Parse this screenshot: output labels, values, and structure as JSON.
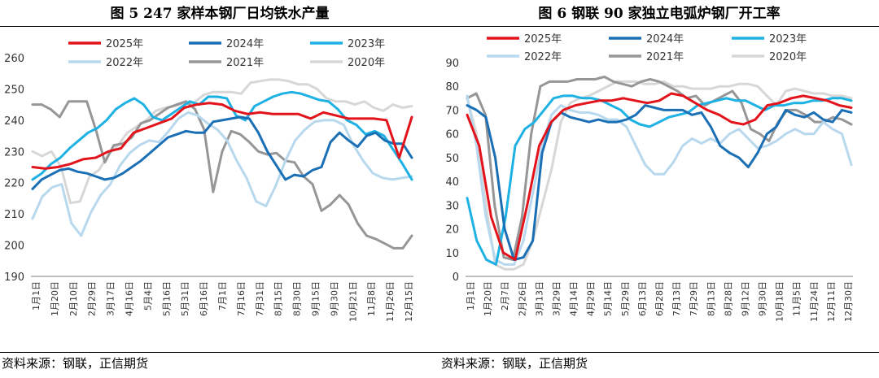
{
  "left": {
    "title": "图 5   247 家样本钢厂日均铁水产量",
    "source": "资料来源：钢联，正信期货"
  },
  "right": {
    "title": "图 6   钢联 90 家独立电弧炉钢厂开工率",
    "source": "资料来源：钢联，正信期货"
  },
  "colors": {
    "2025年": "#e3131b",
    "2024年": "#1a6fb5",
    "2023年": "#1eb1e4",
    "2022年": "#b8d8ee",
    "2021年": "#969696",
    "2020年": "#d7d7d7"
  },
  "chart_data": [
    {
      "type": "line",
      "title": "图 5   247 家样本钢厂日均铁水产量",
      "xlabel": "",
      "ylabel": "",
      "ylim": [
        190,
        260
      ],
      "yticks": [
        190,
        200,
        210,
        220,
        230,
        240,
        250,
        260
      ],
      "legend_position": "top",
      "x_tick_labels": [
        "1月1日",
        "1月20日",
        "2月10日",
        "2月29日",
        "3月17日",
        "4月16日",
        "5月4日",
        "5月16日",
        "5月31日",
        "6月16日",
        "7月1日",
        "7月16日",
        "7月31日",
        "8月15日",
        "8月30日",
        "9月15日",
        "9月30日",
        "10月21日",
        "11月8日",
        "11月26日",
        "12月15日"
      ],
      "series": [
        {
          "name": "2025年",
          "values": [
            225,
            224.5,
            225,
            226,
            227.5,
            228,
            230,
            231,
            236,
            237.5,
            239,
            240.5,
            244,
            245,
            245.5,
            245,
            243,
            242,
            242.5,
            242,
            242,
            242,
            240.5,
            242.5,
            241.5,
            240.5,
            240.5,
            240.5,
            240,
            228,
            241
          ]
        },
        {
          "name": "2024年",
          "values": [
            218,
            221,
            222.5,
            224,
            224.5,
            223.5,
            223,
            222,
            221,
            221.5,
            223,
            225,
            227,
            229.5,
            232,
            234.5,
            235.5,
            236.5,
            236,
            236,
            239.5,
            240,
            240.5,
            241,
            240.5,
            236,
            230,
            225.5,
            221,
            222.5,
            222,
            224,
            225,
            233,
            236,
            233.5,
            231.5,
            235,
            236,
            233.5,
            232.5,
            232.5,
            228
          ]
        },
        {
          "name": "2023年",
          "values": [
            221,
            223,
            226,
            228,
            231,
            233.5,
            236,
            237.5,
            240,
            243.5,
            245.5,
            247,
            245,
            241,
            240,
            242,
            244,
            246,
            245,
            247.5,
            247.5,
            247,
            241.5,
            240,
            244.5,
            246,
            247.5,
            248.5,
            249,
            248.5,
            247.5,
            246.5,
            246,
            243.5,
            240,
            238.5,
            235.5,
            236.5,
            235,
            230.5,
            226,
            221
          ]
        },
        {
          "name": "2022年",
          "values": [
            208.5,
            215.5,
            218.5,
            219.5,
            207,
            203,
            210.5,
            216,
            219.5,
            225.5,
            229.5,
            232,
            233.5,
            233,
            236.5,
            240.5,
            242.5,
            241.5,
            239,
            237,
            233.5,
            227,
            221.5,
            214,
            212.5,
            219,
            227,
            233.5,
            237,
            239.5,
            240,
            240,
            238.5,
            232,
            227,
            223,
            221.5,
            221,
            221.5,
            222
          ]
        },
        {
          "name": "2021年",
          "values": [
            245,
            245,
            243.5,
            241,
            246,
            246,
            246,
            237,
            226.5,
            232,
            232.5,
            234.5,
            239,
            240,
            242,
            244,
            245,
            246,
            243.5,
            237,
            217,
            230,
            236.5,
            235.5,
            233,
            230,
            229,
            229.5,
            227,
            226.5,
            222,
            219.5,
            211,
            213,
            216,
            213,
            207,
            203,
            202,
            200.5,
            199,
            199,
            203
          ]
        },
        {
          "name": "2020年",
          "values": [
            230,
            228.5,
            230,
            225,
            213.5,
            214,
            222,
            224,
            229,
            232,
            236,
            238,
            240,
            243,
            244,
            244.5,
            245.5,
            245.5,
            248,
            249,
            249,
            249,
            248.5,
            252,
            252.5,
            253,
            253,
            252.5,
            251.5,
            251.5,
            250,
            247,
            246,
            246,
            245,
            246,
            244,
            243,
            245,
            244,
            244.5
          ]
        }
      ]
    },
    {
      "type": "line",
      "title": "图 6   钢联 90 家独立电弧炉钢厂开工率",
      "xlabel": "",
      "ylabel": "",
      "ylim": [
        0,
        90
      ],
      "yticks": [
        0,
        10,
        20,
        30,
        40,
        50,
        60,
        70,
        80,
        90
      ],
      "legend_position": "top",
      "x_tick_labels": [
        "1月1日",
        "1月20日",
        "2月7日",
        "2月26日",
        "3月13日",
        "3月29日",
        "4月14日",
        "4月29日",
        "5月14日",
        "5月29日",
        "6月13日",
        "6月28日",
        "7月13日",
        "7月29日",
        "8月13日",
        "8月28日",
        "9月12日",
        "9月30日",
        "10月18日",
        "11月5日",
        "11月24日",
        "12月11日",
        "12月30日"
      ],
      "series": [
        {
          "name": "2025年",
          "values": [
            68,
            55,
            25,
            10,
            7,
            30,
            55,
            65,
            70,
            72,
            73,
            74,
            74,
            75,
            74,
            73,
            74,
            77,
            76,
            73,
            70,
            68,
            65,
            64,
            66,
            72,
            73,
            75,
            76,
            75,
            74,
            72,
            71
          ]
        },
        {
          "name": "2024年",
          "values": [
            72,
            70,
            67,
            50,
            20,
            7,
            8,
            15,
            52,
            65,
            69,
            67,
            66,
            65,
            66,
            65,
            65,
            66,
            68,
            72,
            71,
            70,
            70,
            70,
            68,
            69,
            63,
            55,
            52,
            50,
            46,
            52,
            60,
            63,
            70,
            68,
            67,
            69,
            66,
            65,
            70,
            69
          ]
        },
        {
          "name": "2023年",
          "values": [
            33,
            15,
            7,
            5,
            25,
            55,
            62,
            65,
            70,
            75,
            76,
            76,
            75,
            75,
            74,
            72,
            70,
            66,
            64,
            63,
            65,
            67,
            68,
            69,
            72,
            73,
            74,
            75,
            74,
            74,
            72,
            70,
            72,
            72,
            73,
            73,
            74,
            74,
            75,
            75,
            74
          ]
        },
        {
          "name": "2022年",
          "values": [
            76,
            55,
            25,
            7,
            5,
            5,
            15,
            35,
            55,
            68,
            72,
            70,
            69,
            69,
            68,
            66,
            66,
            63,
            55,
            47,
            43,
            43,
            48,
            55,
            58,
            56,
            58,
            56,
            60,
            62,
            58,
            54,
            55,
            57,
            60,
            62,
            60,
            60,
            65,
            62,
            60,
            47
          ]
        },
        {
          "name": "2021年",
          "values": [
            75,
            77,
            68,
            30,
            8,
            7,
            25,
            60,
            80,
            82,
            82,
            82,
            83,
            83,
            83,
            84,
            82,
            81,
            80,
            82,
            83,
            82,
            80,
            78,
            75,
            76,
            72,
            74,
            76,
            78,
            73,
            62,
            60,
            57,
            65,
            70,
            70,
            68,
            65,
            65,
            67,
            66,
            64
          ]
        },
        {
          "name": "2020年",
          "values": [
            75,
            60,
            30,
            5,
            3,
            3,
            5,
            15,
            30,
            45,
            65,
            73,
            75,
            76,
            78,
            80,
            82,
            82,
            82,
            81,
            81,
            82,
            80,
            80,
            79,
            79,
            79,
            80,
            80,
            81,
            81,
            80,
            76,
            72,
            78,
            79,
            78,
            77,
            77,
            76,
            76,
            75
          ]
        }
      ]
    }
  ]
}
